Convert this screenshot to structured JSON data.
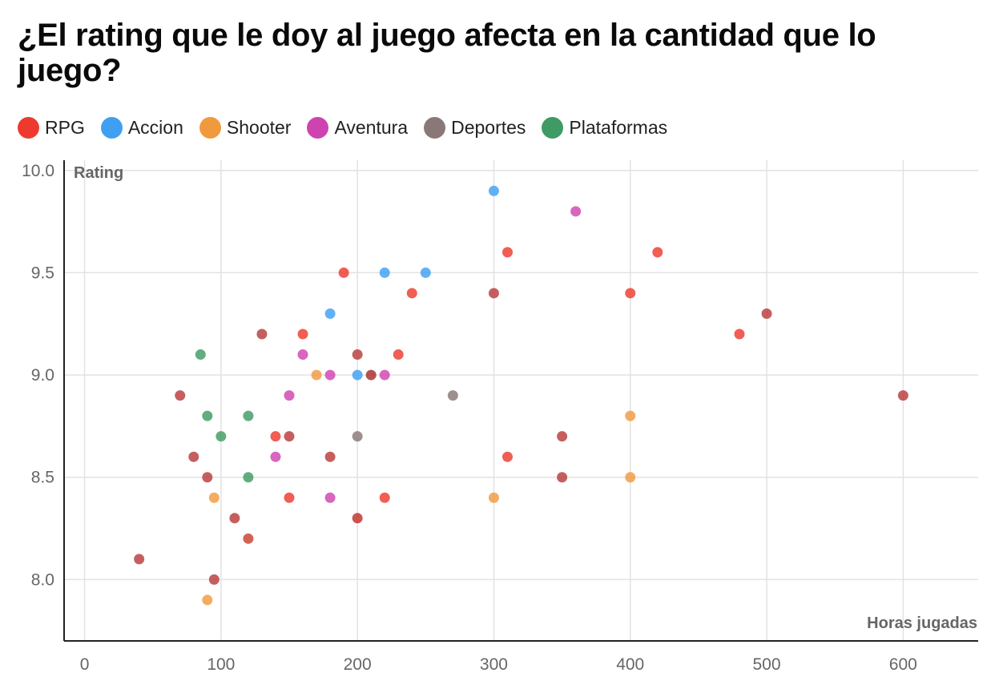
{
  "title": "¿El rating que le doy al juego afecta en la cantidad que lo juego?",
  "colors": {
    "RPG": "#ee3a2e",
    "Accion": "#3fa0f2",
    "Shooter": "#f09a3e",
    "Aventura": "#cf43b0",
    "Deportes": "#8a7878",
    "Plataformas": "#3f9b63",
    "RPG_dark": "#b83c3c"
  },
  "legend": [
    {
      "name": "RPG",
      "color": "#ee3a2e"
    },
    {
      "name": "Accion",
      "color": "#3fa0f2"
    },
    {
      "name": "Shooter",
      "color": "#f09a3e"
    },
    {
      "name": "Aventura",
      "color": "#cf43b0"
    },
    {
      "name": "Deportes",
      "color": "#8a7878"
    },
    {
      "name": "Plataformas",
      "color": "#3f9b63"
    }
  ],
  "chart_data": {
    "type": "scatter",
    "xlabel": "Horas jugadas",
    "ylabel": "Rating",
    "xlim": [
      -15,
      655
    ],
    "ylim": [
      7.7,
      10.05
    ],
    "x_ticks": [
      "0",
      "100",
      "200",
      "300",
      "400",
      "500",
      "600"
    ],
    "x_tick_values": [
      0,
      100,
      200,
      300,
      400,
      500,
      600
    ],
    "y_ticks": [
      "8.0",
      "8.5",
      "9.0",
      "9.5",
      "10.0"
    ],
    "y_tick_values": [
      8.0,
      8.5,
      9.0,
      9.5,
      10.0
    ],
    "grid": true,
    "points": [
      {
        "x": 40,
        "y": 8.1,
        "color": "#b83c3c"
      },
      {
        "x": 70,
        "y": 8.9,
        "color": "#b83c3c"
      },
      {
        "x": 80,
        "y": 8.6,
        "color": "#b83c3c"
      },
      {
        "x": 90,
        "y": 8.5,
        "color": "#b83c3c"
      },
      {
        "x": 95,
        "y": 8.0,
        "color": "#b83c3c"
      },
      {
        "x": 110,
        "y": 8.3,
        "color": "#b83c3c"
      },
      {
        "x": 120,
        "y": 8.2,
        "color": "#c8412e"
      },
      {
        "x": 130,
        "y": 9.2,
        "color": "#b83c3c"
      },
      {
        "x": 150,
        "y": 8.7,
        "color": "#b83c3c"
      },
      {
        "x": 180,
        "y": 8.6,
        "color": "#b83c3c"
      },
      {
        "x": 200,
        "y": 9.1,
        "color": "#b83c3c"
      },
      {
        "x": 200,
        "y": 8.3,
        "color": "#c0302a"
      },
      {
        "x": 210,
        "y": 9.0,
        "color": "#a82a2a"
      },
      {
        "x": 300,
        "y": 9.4,
        "color": "#b83c3c"
      },
      {
        "x": 350,
        "y": 8.7,
        "color": "#b83c3c"
      },
      {
        "x": 350,
        "y": 8.5,
        "color": "#b83c3c"
      },
      {
        "x": 500,
        "y": 9.3,
        "color": "#b83c3c"
      },
      {
        "x": 600,
        "y": 8.9,
        "color": "#b83c3c"
      },
      {
        "x": 140,
        "y": 8.7,
        "color": "#ee3a2e"
      },
      {
        "x": 150,
        "y": 8.4,
        "color": "#ee3a2e"
      },
      {
        "x": 160,
        "y": 9.2,
        "color": "#ee3a2e"
      },
      {
        "x": 190,
        "y": 9.5,
        "color": "#ee3a2e"
      },
      {
        "x": 220,
        "y": 8.4,
        "color": "#ee3a2e"
      },
      {
        "x": 230,
        "y": 9.1,
        "color": "#ee3a2e"
      },
      {
        "x": 240,
        "y": 9.4,
        "color": "#ee3a2e"
      },
      {
        "x": 310,
        "y": 9.6,
        "color": "#ee3a2e"
      },
      {
        "x": 310,
        "y": 8.6,
        "color": "#ee3a2e"
      },
      {
        "x": 400,
        "y": 9.4,
        "color": "#ee3a2e"
      },
      {
        "x": 420,
        "y": 9.6,
        "color": "#ee3a2e"
      },
      {
        "x": 480,
        "y": 9.2,
        "color": "#ee3a2e"
      },
      {
        "x": 180,
        "y": 9.3,
        "color": "#3fa0f2"
      },
      {
        "x": 200,
        "y": 9.0,
        "color": "#3fa0f2"
      },
      {
        "x": 220,
        "y": 9.5,
        "color": "#3fa0f2"
      },
      {
        "x": 250,
        "y": 9.5,
        "color": "#3fa0f2"
      },
      {
        "x": 300,
        "y": 9.9,
        "color": "#3fa0f2"
      },
      {
        "x": 90,
        "y": 7.9,
        "color": "#f09a3e"
      },
      {
        "x": 95,
        "y": 8.4,
        "color": "#f09a3e"
      },
      {
        "x": 170,
        "y": 9.0,
        "color": "#f09a3e"
      },
      {
        "x": 300,
        "y": 8.4,
        "color": "#f09a3e"
      },
      {
        "x": 400,
        "y": 8.8,
        "color": "#f09a3e"
      },
      {
        "x": 400,
        "y": 8.5,
        "color": "#f09a3e"
      },
      {
        "x": 140,
        "y": 8.6,
        "color": "#cf43b0"
      },
      {
        "x": 150,
        "y": 8.9,
        "color": "#cf43b0"
      },
      {
        "x": 160,
        "y": 9.1,
        "color": "#cf43b0"
      },
      {
        "x": 180,
        "y": 9.0,
        "color": "#cf43b0"
      },
      {
        "x": 180,
        "y": 8.4,
        "color": "#cf43b0"
      },
      {
        "x": 220,
        "y": 9.0,
        "color": "#cf43b0"
      },
      {
        "x": 360,
        "y": 9.8,
        "color": "#cf43b0"
      },
      {
        "x": 200,
        "y": 8.7,
        "color": "#8a7878"
      },
      {
        "x": 270,
        "y": 8.9,
        "color": "#8a7878"
      },
      {
        "x": 85,
        "y": 9.1,
        "color": "#3f9b63"
      },
      {
        "x": 90,
        "y": 8.8,
        "color": "#3f9b63"
      },
      {
        "x": 100,
        "y": 8.7,
        "color": "#3f9b63"
      },
      {
        "x": 120,
        "y": 8.8,
        "color": "#3f9b63"
      },
      {
        "x": 120,
        "y": 8.5,
        "color": "#3f9b63"
      }
    ]
  }
}
